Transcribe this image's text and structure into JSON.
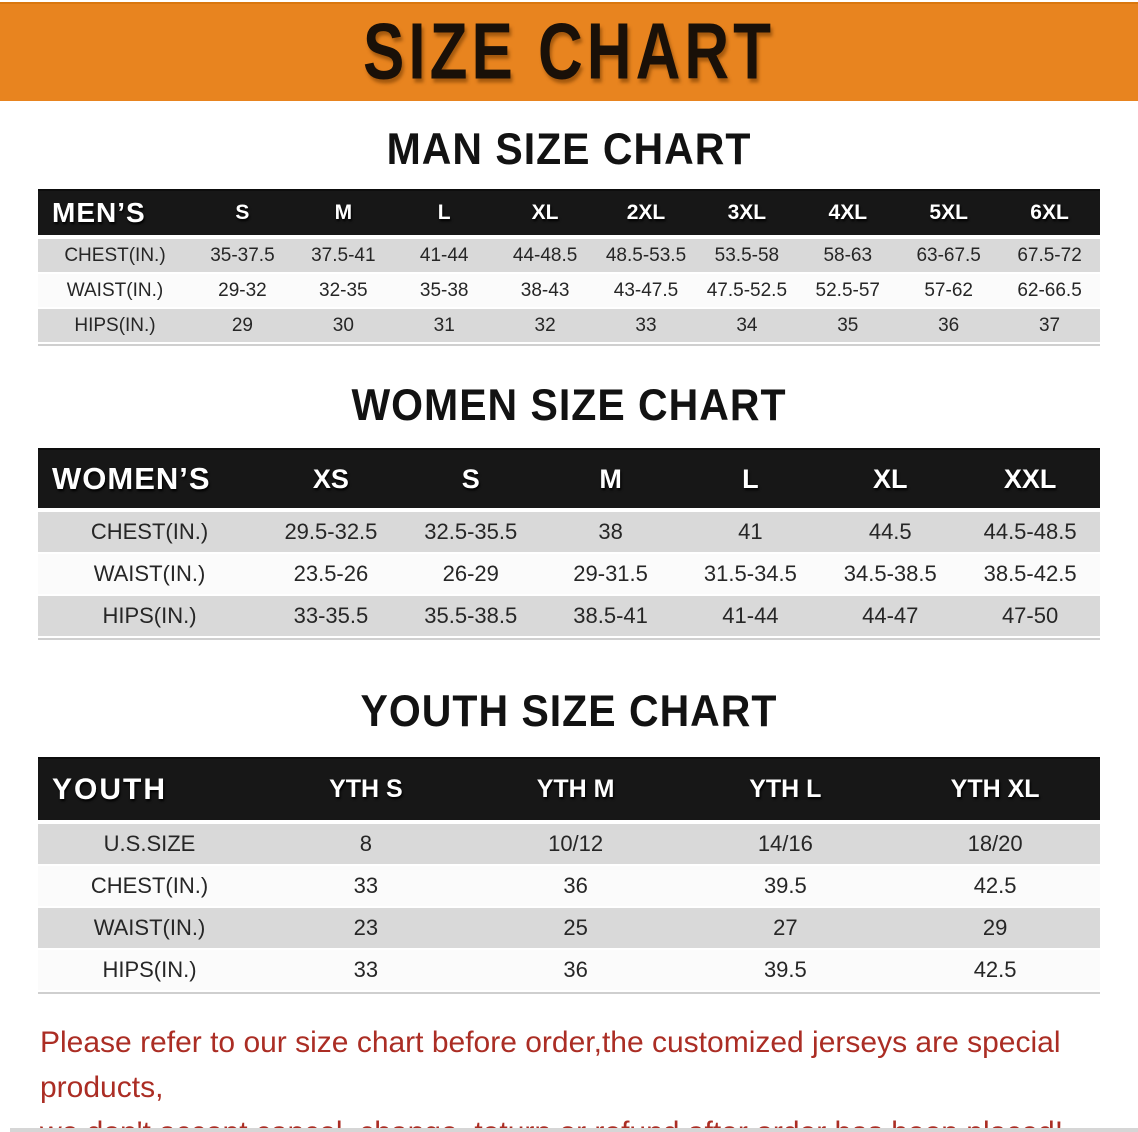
{
  "banner": {
    "title": "SIZE CHART",
    "bg_color": "#e8841f",
    "text_color": "#191008"
  },
  "sections": [
    {
      "heading": "MAN SIZE CHART",
      "table": {
        "header_label": "MEN’S",
        "columns": [
          "S",
          "M",
          "L",
          "XL",
          "2XL",
          "3XL",
          "4XL",
          "5XL",
          "6XL"
        ],
        "rows": [
          {
            "label": "CHEST(IN.)",
            "values": [
              "35-37.5",
              "37.5-41",
              "41-44",
              "44-48.5",
              "48.5-53.5",
              "53.5-58",
              "58-63",
              "63-67.5",
              "67.5-72"
            ]
          },
          {
            "label": "WAIST(IN.)",
            "values": [
              "29-32",
              "32-35",
              "35-38",
              "38-43",
              "43-47.5",
              "47.5-52.5",
              "52.5-57",
              "57-62",
              "62-66.5"
            ]
          },
          {
            "label": "HIPS(IN.)",
            "values": [
              "29",
              "30",
              "31",
              "32",
              "33",
              "34",
              "35",
              "36",
              "37"
            ]
          }
        ]
      }
    },
    {
      "heading": "WOMEN SIZE CHART",
      "table": {
        "header_label": "WOMEN’S",
        "columns": [
          "XS",
          "S",
          "M",
          "L",
          "XL",
          "XXL"
        ],
        "rows": [
          {
            "label": "CHEST(IN.)",
            "values": [
              "29.5-32.5",
              "32.5-35.5",
              "38",
              "41",
              "44.5",
              "44.5-48.5"
            ]
          },
          {
            "label": "WAIST(IN.)",
            "values": [
              "23.5-26",
              "26-29",
              "29-31.5",
              "31.5-34.5",
              "34.5-38.5",
              "38.5-42.5"
            ]
          },
          {
            "label": "HIPS(IN.)",
            "values": [
              "33-35.5",
              "35.5-38.5",
              "38.5-41",
              "41-44",
              "44-47",
              "47-50"
            ]
          }
        ]
      }
    },
    {
      "heading": "YOUTH SIZE CHART",
      "table": {
        "header_label": "YOUTH",
        "columns": [
          "YTH S",
          "YTH M",
          "YTH L",
          "YTH XL"
        ],
        "rows": [
          {
            "label": "U.S.SIZE",
            "values": [
              "8",
              "10/12",
              "14/16",
              "18/20"
            ]
          },
          {
            "label": "CHEST(IN.)",
            "values": [
              "33",
              "36",
              "39.5",
              "42.5"
            ]
          },
          {
            "label": "WAIST(IN.)",
            "values": [
              "23",
              "25",
              "27",
              "29"
            ]
          },
          {
            "label": "HIPS(IN.)",
            "values": [
              "33",
              "36",
              "39.5",
              "42.5"
            ]
          }
        ]
      }
    }
  ],
  "footer": {
    "line1": "Please refer to our size chart before order,the customized jerseys are special products,",
    "line2": "we don't accept cancel, change, teturn or refund after order has been placed!",
    "text_color": "#ab2d24"
  },
  "colors": {
    "table_header_bg": "#171717",
    "table_header_text": "#ffffff",
    "row_alt_bg": "#d9d9d9",
    "row_bg": "#fbfbfb"
  }
}
